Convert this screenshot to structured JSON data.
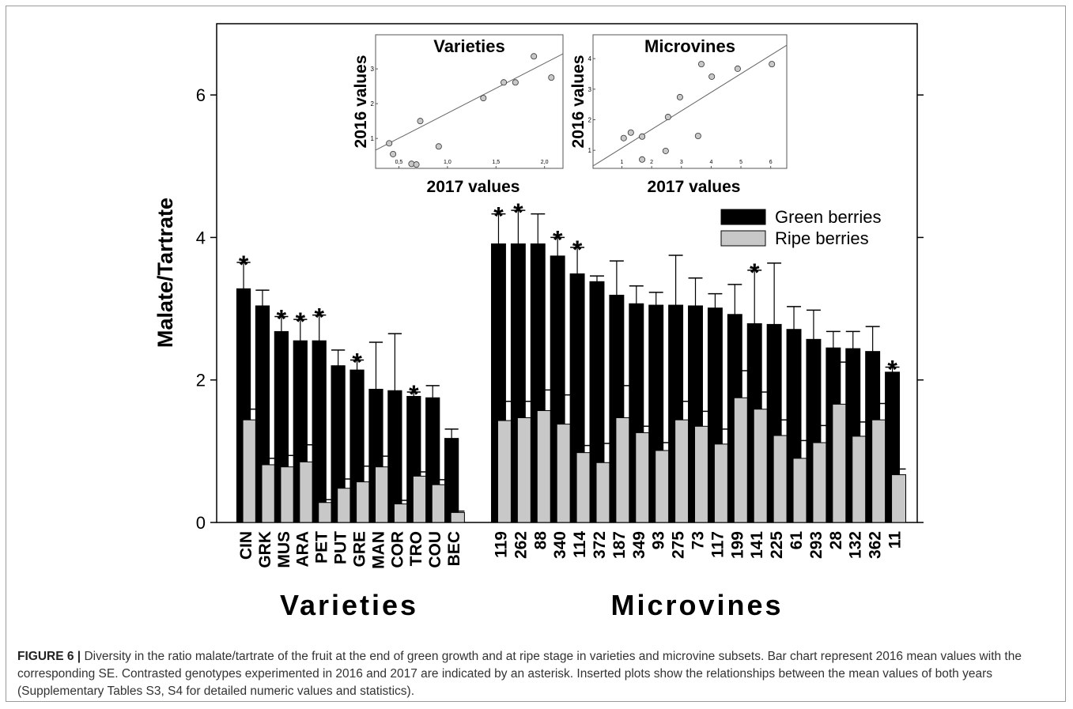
{
  "chart_data": [
    {
      "type": "bar",
      "xlabel": "Varieties",
      "ylabel": "Malate/Tartrate",
      "ylim": [
        0,
        7
      ],
      "yticks": [
        0,
        2,
        4,
        6
      ],
      "categories": [
        "CIN",
        "GRK",
        "MUS",
        "ARA",
        "PET",
        "PUT",
        "GRE",
        "MAN",
        "COR",
        "TRO",
        "COU",
        "BEC"
      ],
      "series": [
        {
          "color": "#000000",
          "values": [
            3.28,
            3.04,
            2.68,
            2.55,
            2.55,
            2.2,
            2.14,
            1.87,
            1.85,
            1.77,
            1.75,
            1.18
          ],
          "errors": [
            0.37,
            0.22,
            0.21,
            0.3,
            0.36,
            0.22,
            0.14,
            0.66,
            0.8,
            0.06,
            0.17,
            0.13
          ]
        },
        {
          "color": "#c8c8c8",
          "values": [
            1.44,
            0.81,
            0.78,
            0.85,
            0.28,
            0.48,
            0.57,
            0.78,
            0.26,
            0.65,
            0.53,
            0.14
          ],
          "errors": [
            0.15,
            0.09,
            0.16,
            0.24,
            0.04,
            0.13,
            0.22,
            0.15,
            0.05,
            0.06,
            0.07,
            0.02
          ]
        }
      ],
      "asterisks": [
        "*",
        null,
        "*",
        "*",
        "*",
        null,
        "*",
        null,
        null,
        "*",
        null,
        null
      ]
    },
    {
      "type": "bar",
      "xlabel": "Microvines",
      "ylim": [
        0,
        7
      ],
      "categories": [
        "119",
        "262",
        "88",
        "340",
        "114",
        "372",
        "187",
        "349",
        "93",
        "275",
        "73",
        "117",
        "199",
        "141",
        "225",
        "61",
        "293",
        "28",
        "132",
        "362",
        "11"
      ],
      "series": [
        {
          "name": "Green berries",
          "color": "#000000",
          "values": [
            3.91,
            3.91,
            3.91,
            3.74,
            3.49,
            3.38,
            3.19,
            3.07,
            3.05,
            3.05,
            3.04,
            3.01,
            2.92,
            2.79,
            2.78,
            2.71,
            2.57,
            2.45,
            2.44,
            2.4,
            2.11
          ],
          "errors": [
            0.42,
            0.47,
            0.42,
            0.26,
            0.37,
            0.08,
            0.48,
            0.25,
            0.18,
            0.7,
            0.39,
            0.2,
            0.42,
            0.75,
            0.86,
            0.32,
            0.41,
            0.23,
            0.24,
            0.35,
            0.07
          ]
        },
        {
          "name": "Ripe berries",
          "color": "#c8c8c8",
          "values": [
            1.43,
            1.47,
            1.57,
            1.38,
            0.98,
            0.84,
            1.47,
            1.26,
            1.01,
            1.44,
            1.35,
            1.1,
            1.75,
            1.59,
            1.22,
            0.9,
            1.12,
            1.66,
            1.21,
            1.44,
            0.67
          ],
          "errors": [
            0.27,
            0.23,
            0.29,
            0.41,
            0.1,
            0.27,
            0.45,
            0.09,
            0.11,
            0.26,
            0.21,
            0.21,
            0.38,
            0.24,
            0.22,
            0.25,
            0.24,
            0.59,
            0.2,
            0.23,
            0.08
          ]
        }
      ],
      "asterisks": [
        "*",
        "*",
        null,
        "*",
        "*",
        null,
        null,
        null,
        null,
        null,
        null,
        null,
        null,
        "*",
        null,
        null,
        null,
        null,
        null,
        null,
        "*"
      ]
    },
    {
      "type": "scatter",
      "title": "Varieties",
      "xlabel": "2017 values",
      "ylabel": "2016 values",
      "xlim": [
        0.26,
        2.19
      ],
      "ylim": [
        0.14,
        3.98
      ],
      "xticks": [
        {
          "value": 0.5,
          "label": "0,5"
        },
        {
          "value": 1,
          "label": "1,0"
        },
        {
          "value": 1.5,
          "label": "1,5"
        },
        {
          "value": 2,
          "label": "2,0"
        }
      ],
      "yticks": [
        1,
        2,
        3
      ],
      "x": [
        0.4,
        0.44,
        0.72,
        0.63,
        0.68,
        0.91,
        1.37,
        1.58,
        1.7,
        1.89,
        2.07
      ],
      "y": [
        0.86,
        0.55,
        1.5,
        0.27,
        0.25,
        0.77,
        2.16,
        2.61,
        2.61,
        3.36,
        2.75
      ],
      "color": "#c8c8c8",
      "fit": {
        "slope": 1.435,
        "intercept": 0.29
      }
    },
    {
      "type": "scatter",
      "title": "Microvines",
      "xlabel": "2017 values",
      "ylabel": "2016 values",
      "xlim": [
        0.03,
        6.54
      ],
      "ylim": [
        0.41,
        4.78
      ],
      "xticks": [
        1,
        2,
        3,
        4,
        5,
        6
      ],
      "yticks": [
        1,
        2,
        3,
        4
      ],
      "x": [
        1.06,
        1.3,
        1.68,
        1.68,
        2.47,
        2.55,
        2.95,
        3.56,
        3.67,
        4.02,
        4.89,
        6.04
      ],
      "y": [
        1.4,
        1.58,
        1.45,
        0.7,
        0.98,
        2.09,
        2.74,
        1.47,
        3.82,
        3.41,
        3.67,
        3.82
      ],
      "color": "#c8c8c8",
      "fit": {
        "slope": 0.607,
        "intercept": 0.47
      }
    }
  ],
  "caption": {
    "label": "FIGURE 6 |",
    "text": "Diversity in the ratio malate/tartrate of the fruit at the end of green growth and at ripe stage in varieties and microvine subsets. Bar chart represent 2016 mean values with the corresponding SE. Contrasted genotypes experimented in 2016 and 2017 are indicated by an asterisk. Inserted plots show the relationships between the mean values of both years (Supplementary Tables S3, S4 for detailed numeric values and statistics)."
  }
}
